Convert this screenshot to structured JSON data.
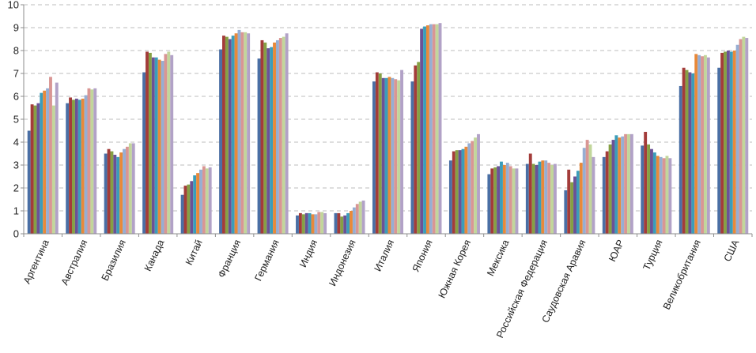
{
  "chart_data": {
    "type": "bar",
    "ylim": [
      0,
      10
    ],
    "yticks": [
      0,
      1,
      2,
      3,
      4,
      5,
      6,
      7,
      8,
      9,
      10
    ],
    "grid": true,
    "categories": [
      "Аргентина",
      "Австралия",
      "Бразилия",
      "Канада",
      "Китай",
      "Франция",
      "Германия",
      "Индия",
      "Индонезия",
      "Италия",
      "Япония",
      "Южная Корея",
      "Мексика",
      "Российская Федерация",
      "Саудовская Аравия",
      "ЮАР",
      "Турция",
      "Великобритания",
      "США"
    ],
    "series_colors": [
      "#4a6fa5",
      "#a33c3a",
      "#86a044",
      "#6b5296",
      "#3b9dba",
      "#e8893a",
      "#96aed3",
      "#d99694",
      "#c2d69b",
      "#b2a2c7",
      "#93cddd",
      "#fac090",
      "#a6a6c6"
    ],
    "values": [
      [
        4.5,
        5.65,
        5.6,
        5.7,
        6.15,
        6.25,
        6.35,
        6.85,
        5.6,
        6.6
      ],
      [
        5.7,
        5.95,
        5.85,
        5.9,
        5.85,
        5.9,
        6.05,
        6.35,
        6.3,
        6.35
      ],
      [
        3.5,
        3.7,
        3.6,
        3.45,
        3.35,
        3.55,
        3.7,
        3.8,
        3.95,
        3.95
      ],
      [
        7.05,
        7.95,
        7.9,
        7.7,
        7.7,
        7.6,
        7.55,
        7.85,
        7.95,
        7.8
      ],
      [
        1.7,
        2.1,
        2.15,
        2.3,
        2.55,
        2.65,
        2.8,
        2.95,
        2.85,
        2.9
      ],
      [
        8.05,
        8.65,
        8.6,
        8.5,
        8.65,
        8.75,
        8.9,
        8.8,
        8.8,
        8.75
      ],
      [
        7.65,
        8.45,
        8.35,
        8.1,
        8.15,
        8.35,
        8.45,
        8.55,
        8.6,
        8.75
      ],
      [
        0.8,
        0.9,
        0.85,
        0.9,
        0.9,
        0.85,
        0.85,
        0.95,
        0.95,
        0.9
      ],
      [
        0.9,
        0.9,
        0.75,
        0.8,
        0.9,
        1.0,
        1.15,
        1.3,
        1.4,
        1.45
      ],
      [
        6.65,
        7.05,
        7.0,
        6.8,
        6.8,
        6.85,
        6.8,
        6.75,
        6.7,
        7.15
      ],
      [
        6.65,
        7.35,
        7.5,
        8.95,
        9.05,
        9.1,
        9.15,
        9.15,
        9.15,
        9.2
      ],
      [
        3.2,
        3.6,
        3.65,
        3.65,
        3.7,
        3.8,
        3.95,
        4.05,
        4.2,
        4.35
      ],
      [
        2.6,
        2.85,
        2.9,
        2.95,
        3.15,
        3.0,
        3.1,
        2.95,
        2.85,
        2.85
      ],
      [
        3.05,
        3.5,
        3.05,
        3.0,
        3.15,
        3.2,
        3.2,
        3.1,
        3.0,
        3.05
      ],
      [
        1.9,
        2.8,
        2.25,
        2.5,
        2.75,
        3.1,
        3.75,
        4.1,
        3.9,
        3.35
      ],
      [
        3.35,
        3.6,
        3.9,
        4.1,
        4.3,
        4.2,
        4.25,
        4.35,
        4.35,
        4.35
      ],
      [
        3.85,
        4.45,
        3.9,
        3.7,
        3.55,
        3.4,
        3.35,
        3.3,
        3.4,
        3.3
      ],
      [
        6.45,
        7.25,
        7.15,
        7.05,
        7.0,
        7.85,
        7.8,
        7.75,
        7.8,
        7.7
      ],
      [
        7.25,
        7.9,
        7.95,
        8.0,
        7.95,
        8.0,
        8.25,
        8.5,
        8.6,
        8.55
      ]
    ]
  }
}
